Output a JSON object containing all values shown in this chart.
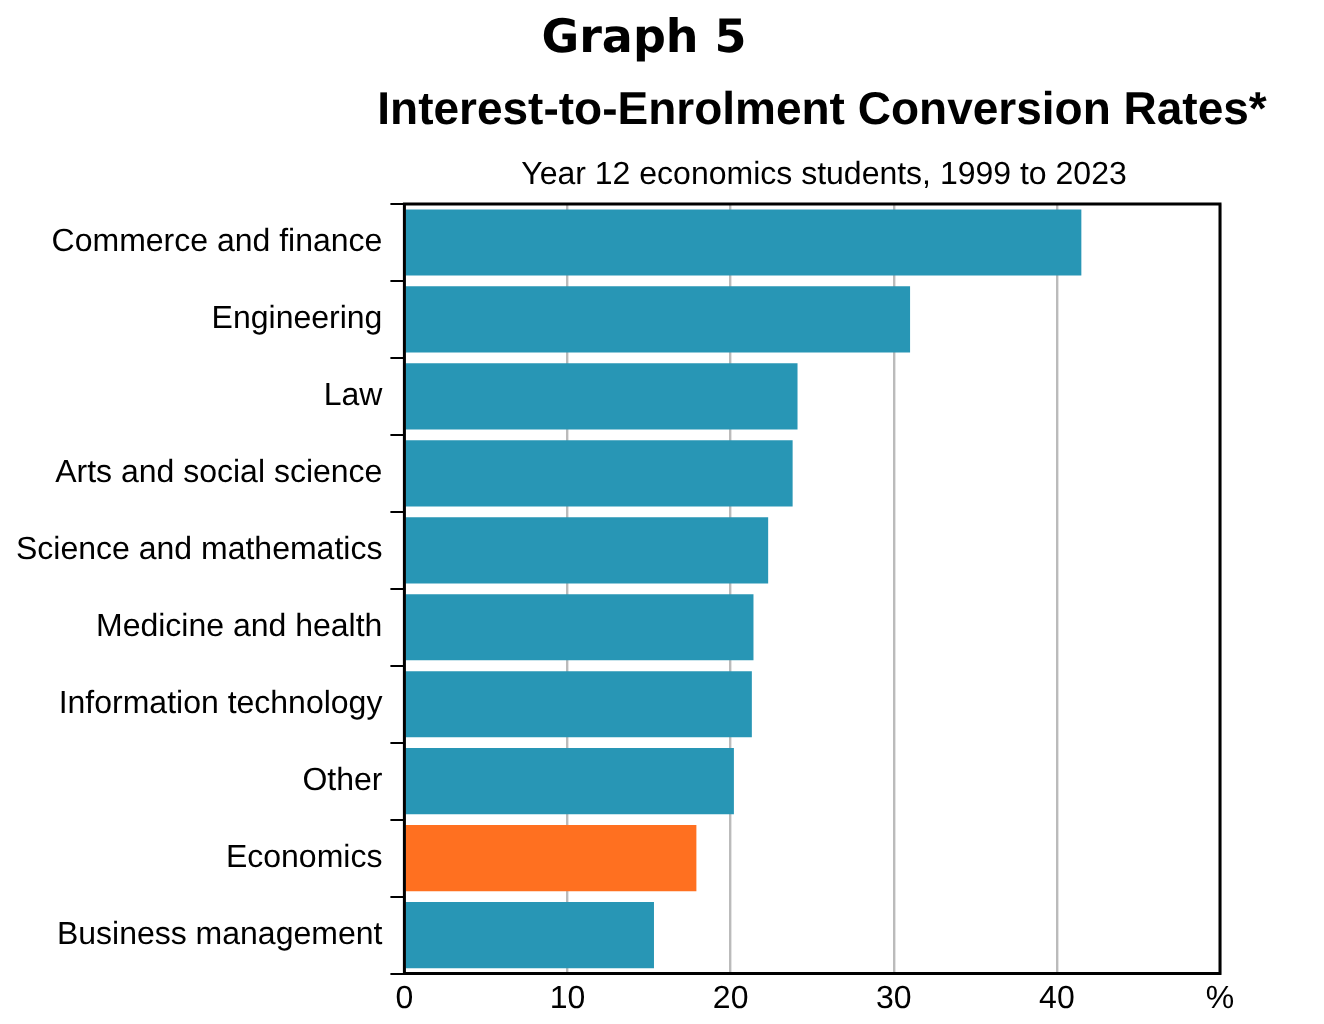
{
  "chart_data": {
    "type": "bar",
    "orientation": "horizontal",
    "title": "Graph 5",
    "subtitle": "Interest-to-Enrolment Conversion Rates*",
    "annotations": [
      "Year 12 economics students, 1999 to 2023"
    ],
    "categories": [
      "Commerce and finance",
      "Engineering",
      "Law",
      "Arts and social science",
      "Science and mathematics",
      "Medicine and health",
      "Information technology",
      "Other",
      "Economics",
      "Business management"
    ],
    "values": [
      41.5,
      31.0,
      24.1,
      23.8,
      22.3,
      21.4,
      21.3,
      20.2,
      17.9,
      15.3
    ],
    "colors": [
      "#2896b5",
      "#2896b5",
      "#2896b5",
      "#2896b5",
      "#2896b5",
      "#2896b5",
      "#2896b5",
      "#2896b5",
      "#ff7020",
      "#2896b5"
    ],
    "xlim": [
      0,
      50
    ],
    "xticks": [
      0,
      10,
      20,
      30,
      40,
      {
        "value": 50,
        "label": "%"
      }
    ],
    "grid": "x",
    "legend": false
  }
}
